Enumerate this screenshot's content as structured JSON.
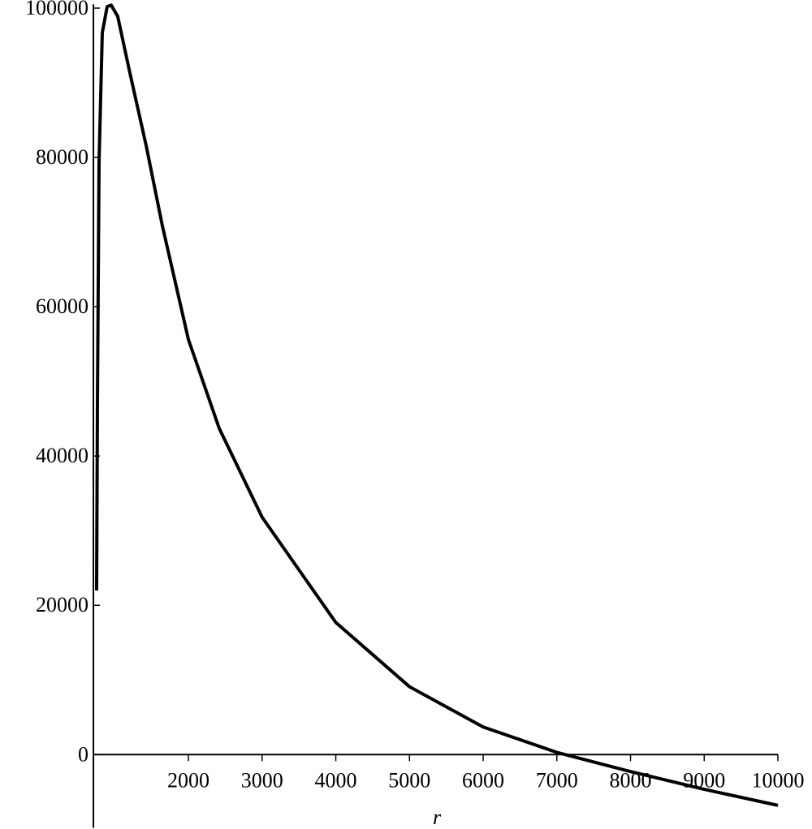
{
  "chart_data": {
    "type": "line",
    "x_label": "r",
    "x": [
      754,
      765,
      787,
      831,
      897,
      952,
      1040,
      1206,
      1426,
      1647,
      2000,
      2418,
      3000,
      4000,
      5000,
      6000,
      7000,
      8000,
      9000,
      10000
    ],
    "series": [
      {
        "color": "#000000",
        "values": [
          22000,
          47000,
          79400,
          96700,
          100200,
          100400,
          98900,
          91300,
          81600,
          70800,
          55600,
          43700,
          31800,
          17700,
          9100,
          3700,
          300,
          -2270,
          -4650,
          -6800
        ]
      }
    ],
    "xlim": [
      710,
      10000
    ],
    "xticks": [
      2000,
      3000,
      4000,
      5000,
      6000,
      7000,
      8000,
      9000,
      10000
    ],
    "ylim": [
      -9800,
      100500
    ],
    "yticks": [
      0,
      20000,
      40000,
      60000,
      80000,
      100000
    ]
  }
}
